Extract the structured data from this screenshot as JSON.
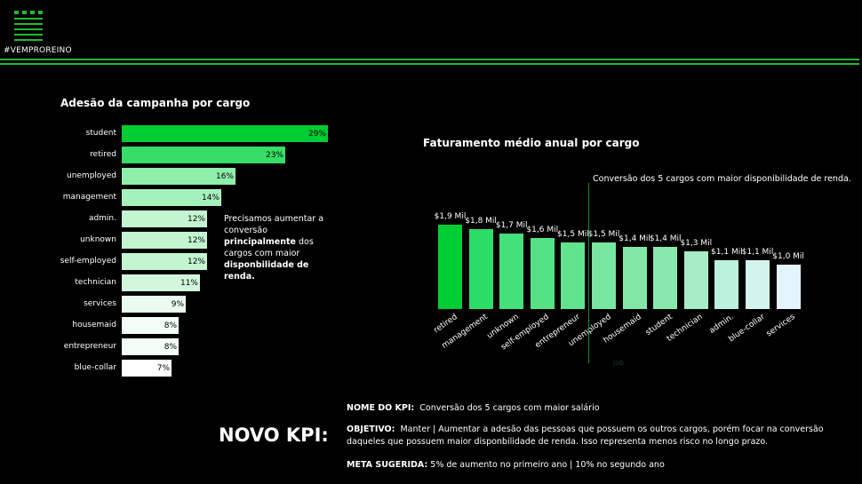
{
  "brand": {
    "hashtag": "#VEMPROREINO"
  },
  "colors": {
    "accent": "#1fb931"
  },
  "left_chart": {
    "title": "Adesão da campanha por cargo",
    "note": {
      "part1": "Precisamos aumentar a conversão ",
      "bold1": "principalmente",
      "part2": " dos cargos com maior ",
      "bold2": "disponbilidade de renda."
    }
  },
  "right_chart": {
    "title": "Faturamento médio anual por cargo",
    "annotation": "Conversão dos 5 cargos com maior disponibilidade de renda.",
    "axis_title": "job"
  },
  "kpi": {
    "heading": "NOVO KPI:",
    "name_label": "NOME DO KPI:",
    "name_value": "Conversão dos 5 cargos com maior salário",
    "goal_label": "OBJETIVO:",
    "goal_value": "Manter | Aumentar a adesão das pessoas que possuem os outros cargos, porém focar na conversão daqueles que possuem maior disponbilidade de renda. Isso representa menos risco no longo prazo.",
    "meta_label": "META SUGERIDA:",
    "meta_value": "5% de aumento no primeiro ano | 10% no segundo ano"
  },
  "chart_data": [
    {
      "type": "bar",
      "orientation": "horizontal",
      "title": "Adesão da campanha por cargo",
      "categories": [
        "student",
        "retired",
        "unemployed",
        "management",
        "admin.",
        "unknown",
        "self-employed",
        "technician",
        "services",
        "housemaid",
        "entrepreneur",
        "blue-collar"
      ],
      "values": [
        29,
        23,
        16,
        14,
        12,
        12,
        12,
        11,
        9,
        8,
        8,
        7
      ],
      "labels": [
        "29%",
        "23%",
        "16%",
        "14%",
        "12%",
        "12%",
        "12%",
        "11%",
        "9%",
        "8%",
        "8%",
        "7%"
      ],
      "colors": [
        "#00cc33",
        "#36dd66",
        "#8eeeaa",
        "#a5f1bb",
        "#c3f5d1",
        "#c3f5d1",
        "#c3f5d1",
        "#d2f8dc",
        "#e9fcee",
        "#f2fdf5",
        "#f2fdf5",
        "#ffffff"
      ],
      "unit": "%"
    },
    {
      "type": "bar",
      "orientation": "vertical",
      "title": "Faturamento médio anual por cargo",
      "xlabel": "job",
      "categories": [
        "retired",
        "management",
        "unknown",
        "self-employed",
        "entrepreneur",
        "unemployed",
        "housemaid",
        "student",
        "technician",
        "admin.",
        "blue-collar",
        "services"
      ],
      "values": [
        1.9,
        1.8,
        1.7,
        1.6,
        1.5,
        1.5,
        1.4,
        1.4,
        1.3,
        1.1,
        1.1,
        1.0
      ],
      "labels": [
        "$1,9 Mil",
        "$1,8 Mil",
        "$1,7 Mil",
        "$1,6 Mil",
        "$1,5 Mil",
        "$1,5 Mil",
        "$1,4 Mil",
        "$1,4 Mil",
        "$1,3 Mil",
        "$1,1 Mil",
        "$1,1 Mil",
        "$1,0 Mil"
      ],
      "colors": [
        "#00cc33",
        "#2add66",
        "#44e07a",
        "#55e285",
        "#62e48e",
        "#76e6a0",
        "#82e7a7",
        "#89e9ac",
        "#a6edc5",
        "#bcf1de",
        "#d2f4ec",
        "#e4f4ff"
      ]
    }
  ]
}
